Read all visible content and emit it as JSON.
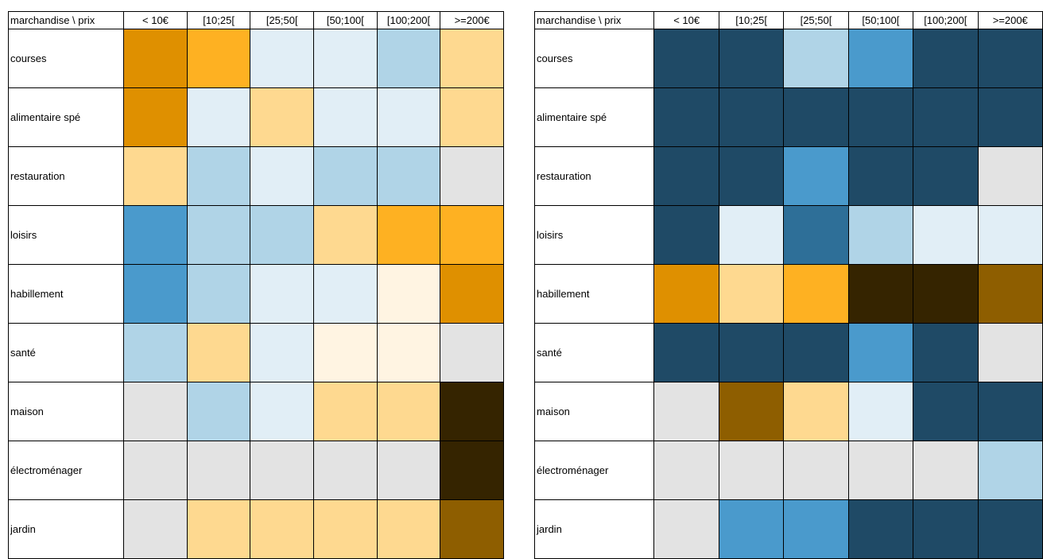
{
  "chart_data": [
    {
      "type": "heatmap",
      "corner_label": "marchandise \\ prix",
      "columns": [
        "< 10€",
        "[10;25[",
        "[25;50[",
        "[50;100[",
        "[100;200[",
        ">=200€"
      ],
      "rows": [
        "courses",
        "alimentaire spé",
        "restauration",
        "loisirs",
        "habillement",
        "santé",
        "maison",
        "électroménager",
        "jardin"
      ],
      "colors": [
        [
          "#DF9000",
          "#FEB122",
          "#E1EEF6",
          "#E1EEF6",
          "#B0D4E7",
          "#FED990"
        ],
        [
          "#DF9000",
          "#E1EEF6",
          "#FED990",
          "#E1EEF6",
          "#E1EEF6",
          "#FED990"
        ],
        [
          "#FED990",
          "#B0D4E7",
          "#E1EEF6",
          "#B0D4E7",
          "#B0D4E7",
          "#E3E3E3"
        ],
        [
          "#4A9ACC",
          "#B0D4E7",
          "#B0D4E7",
          "#FED990",
          "#FEB122",
          "#FEB122"
        ],
        [
          "#4A9ACC",
          "#B0D4E7",
          "#E1EEF6",
          "#E1EEF6",
          "#FFF4E2",
          "#DF9000"
        ],
        [
          "#B0D4E7",
          "#FED990",
          "#E1EEF6",
          "#FFF4E2",
          "#FFF4E2",
          "#E3E3E3"
        ],
        [
          "#E3E3E3",
          "#B0D4E7",
          "#E1EEF6",
          "#FED990",
          "#FED990",
          "#352400"
        ],
        [
          "#E3E3E3",
          "#E3E3E3",
          "#E3E3E3",
          "#E3E3E3",
          "#E3E3E3",
          "#352400"
        ],
        [
          "#E3E3E3",
          "#FED990",
          "#FED990",
          "#FED990",
          "#FED990",
          "#8E5E00"
        ]
      ]
    },
    {
      "type": "heatmap",
      "corner_label": "marchandise \\ prix",
      "columns": [
        "< 10€",
        "[10;25[",
        "[25;50[",
        "[50;100[",
        "[100;200[",
        ">=200€"
      ],
      "rows": [
        "courses",
        "alimentaire spé",
        "restauration",
        "loisirs",
        "habillement",
        "santé",
        "maison",
        "électroménager",
        "jardin"
      ],
      "colors": [
        [
          "#1F4A66",
          "#1F4A66",
          "#B0D4E7",
          "#4A9ACC",
          "#1F4A66",
          "#1F4A66"
        ],
        [
          "#1F4A66",
          "#1F4A66",
          "#1F4A66",
          "#1F4A66",
          "#1F4A66",
          "#1F4A66"
        ],
        [
          "#1F4A66",
          "#1F4A66",
          "#4A9ACC",
          "#1F4A66",
          "#1F4A66",
          "#E3E3E3"
        ],
        [
          "#1F4A66",
          "#E1EEF6",
          "#2E6F98",
          "#B0D4E7",
          "#E1EEF6",
          "#E1EEF6"
        ],
        [
          "#DF9000",
          "#FED990",
          "#FEB122",
          "#352400",
          "#352400",
          "#8E5E00"
        ],
        [
          "#1F4A66",
          "#1F4A66",
          "#1F4A66",
          "#4A9ACC",
          "#1F4A66",
          "#E3E3E3"
        ],
        [
          "#E3E3E3",
          "#8E5E00",
          "#FED990",
          "#E1EEF6",
          "#1F4A66",
          "#1F4A66"
        ],
        [
          "#E3E3E3",
          "#E3E3E3",
          "#E3E3E3",
          "#E3E3E3",
          "#E3E3E3",
          "#B0D4E7"
        ],
        [
          "#E3E3E3",
          "#4A9ACC",
          "#4A9ACC",
          "#1F4A66",
          "#1F4A66",
          "#1F4A66"
        ]
      ]
    }
  ]
}
